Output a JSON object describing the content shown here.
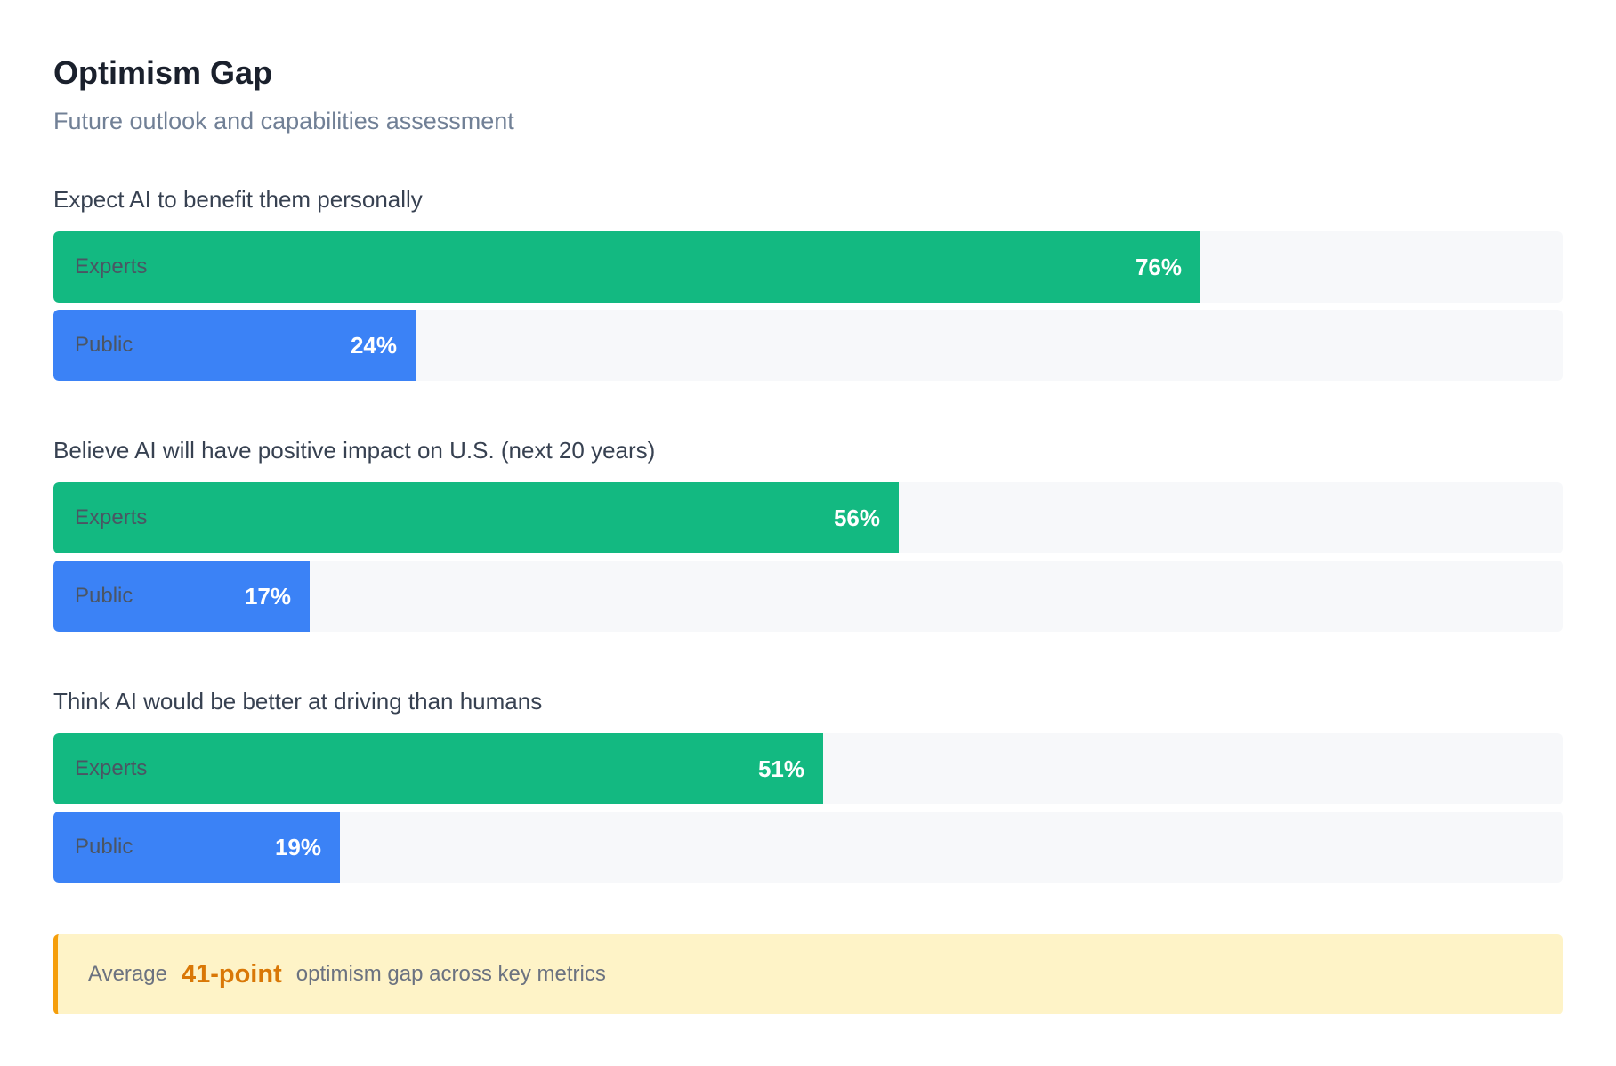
{
  "header": {
    "title": "Optimism Gap",
    "subtitle": "Future outlook and capabilities assessment"
  },
  "colors": {
    "experts": "#13b981",
    "public": "#3b82f6",
    "track": "#f7f8fa",
    "callout_bg": "#fef3c7",
    "callout_accent": "#f59e0b",
    "callout_highlight": "#d97706"
  },
  "chart_data": {
    "type": "bar",
    "orientation": "horizontal",
    "categories": [
      "Expect AI to benefit them personally",
      "Believe AI will have positive impact on U.S. (next 20 years)",
      "Think AI would be better at driving than humans"
    ],
    "series": [
      {
        "name": "Experts",
        "values": [
          76,
          56,
          51
        ]
      },
      {
        "name": "Public",
        "values": [
          24,
          17,
          19
        ]
      }
    ],
    "value_labels": [
      [
        "76%",
        "24%"
      ],
      [
        "56%",
        "17%"
      ],
      [
        "51%",
        "19%"
      ]
    ],
    "xlim": [
      0,
      100
    ]
  },
  "callout": {
    "prefix": "Average",
    "highlight": "41-point",
    "suffix": "optimism gap across key metrics"
  }
}
